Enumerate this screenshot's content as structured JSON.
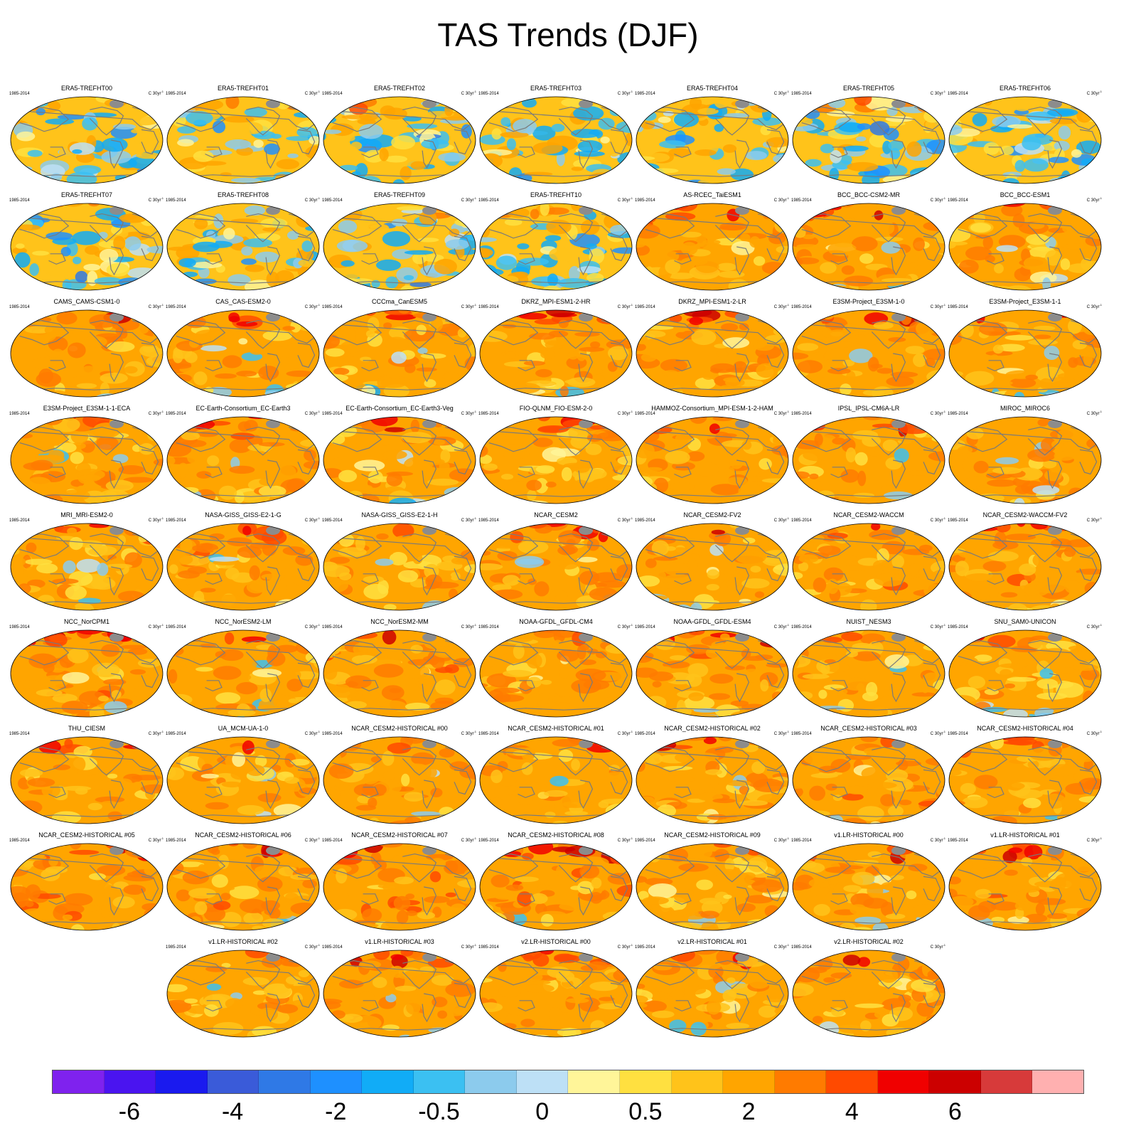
{
  "figure": {
    "title": "TAS Trends (DJF)",
    "period_label": "1985-2014",
    "units_base": "C 30yr",
    "units_exp": "-1"
  },
  "chart_data": {
    "type": "heatmap",
    "title": "TAS Trends (DJF)",
    "variable": "TAS",
    "season": "DJF",
    "period": "1985-2014",
    "units": "C 30yr-1",
    "projection": "global map panels",
    "panels": [
      "ERA5-TREFHT00",
      "ERA5-TREFHT01",
      "ERA5-TREFHT02",
      "ERA5-TREFHT03",
      "ERA5-TREFHT04",
      "ERA5-TREFHT05",
      "ERA5-TREFHT06",
      "ERA5-TREFHT07",
      "ERA5-TREFHT08",
      "ERA5-TREFHT09",
      "ERA5-TREFHT10",
      "AS-RCEC_TaiESM1",
      "BCC_BCC-CSM2-MR",
      "BCC_BCC-ESM1",
      "CAMS_CAMS-CSM1-0",
      "CAS_CAS-ESM2-0",
      "CCCma_CanESM5",
      "DKRZ_MPI-ESM1-2-HR",
      "DKRZ_MPI-ESM1-2-LR",
      "E3SM-Project_E3SM-1-0",
      "E3SM-Project_E3SM-1-1",
      "E3SM-Project_E3SM-1-1-ECA",
      "EC-Earth-Consortium_EC-Earth3",
      "EC-Earth-Consortium_EC-Earth3-Veg",
      "FIO-QLNM_FIO-ESM-2-0",
      "HAMMOZ-Consortium_MPI-ESM-1-2-HAM",
      "IPSL_IPSL-CM6A-LR",
      "MIROC_MIROC6",
      "MRI_MRI-ESM2-0",
      "NASA-GISS_GISS-E2-1-G",
      "NASA-GISS_GISS-E2-1-H",
      "NCAR_CESM2",
      "NCAR_CESM2-FV2",
      "NCAR_CESM2-WACCM",
      "NCAR_CESM2-WACCM-FV2",
      "NCC_NorCPM1",
      "NCC_NorESM2-LM",
      "NCC_NorESM2-MM",
      "NOAA-GFDL_GFDL-CM4",
      "NOAA-GFDL_GFDL-ESM4",
      "NUIST_NESM3",
      "SNU_SAM0-UNICON",
      "THU_CIESM",
      "UA_MCM-UA-1-0",
      "NCAR_CESM2-HISTORICAL  #00",
      "NCAR_CESM2-HISTORICAL  #01",
      "NCAR_CESM2-HISTORICAL  #02",
      "NCAR_CESM2-HISTORICAL  #03",
      "NCAR_CESM2-HISTORICAL  #04",
      "NCAR_CESM2-HISTORICAL  #05",
      "NCAR_CESM2-HISTORICAL  #06",
      "NCAR_CESM2-HISTORICAL  #07",
      "NCAR_CESM2-HISTORICAL  #08",
      "NCAR_CESM2-HISTORICAL  #09",
      "v1.LR-HISTORICAL  #00",
      "v1.LR-HISTORICAL  #01",
      "v1.LR-HISTORICAL  #02",
      "v1.LR-HISTORICAL  #03",
      "v2.LR-HISTORICAL  #00",
      "v2.LR-HISTORICAL  #01",
      "v2.LR-HISTORICAL  #02"
    ],
    "colorbar": {
      "colors": [
        "#7f22ee",
        "#4a14f0",
        "#1a1aef",
        "#3a5bd9",
        "#2f79e6",
        "#1e90ff",
        "#11acf7",
        "#3bc0f2",
        "#8ccbed",
        "#bde0f6",
        "#fff599",
        "#ffe040",
        "#ffc31a",
        "#ffa500",
        "#ff7b00",
        "#ff4a00",
        "#f00000",
        "#cc0000",
        "#d73a3a",
        "#ffb0b0"
      ],
      "tick_labels": [
        "-6",
        "-4",
        "-2",
        "-0.5",
        "0",
        "0.5",
        "2",
        "4",
        "6"
      ],
      "tick_positions_boundary_index": [
        2,
        4,
        6,
        8,
        10,
        12,
        14,
        16,
        18
      ]
    }
  }
}
